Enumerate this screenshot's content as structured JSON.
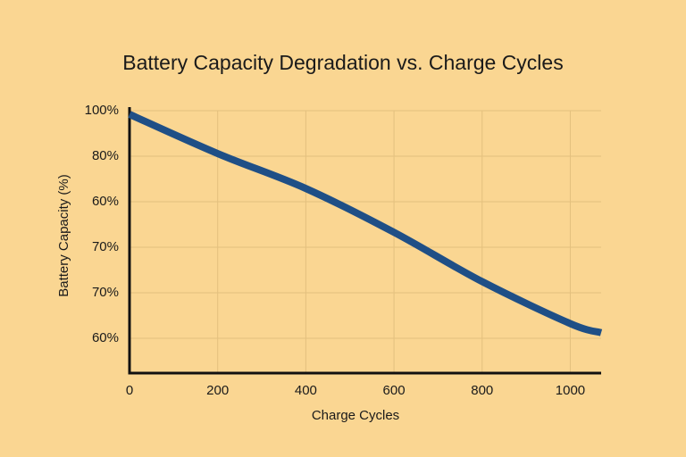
{
  "chart_data": {
    "type": "line",
    "title": "Battery Capacity Degradation vs. Charge Cycles",
    "x_label": "Charge Cycles",
    "y_label": "Battery Capacity (%)",
    "x": [
      0,
      200,
      400,
      600,
      800,
      1000,
      1070
    ],
    "series": [
      {
        "name": "Battery Capacity",
        "color": "#1f4f86",
        "values": [
          98.4,
          81.2,
          65.9,
          46.7,
          25.1,
          6.7,
          2.7
        ]
      }
    ],
    "xlim": [
      0,
      1070
    ],
    "xticks": [
      0,
      200,
      400,
      600,
      800,
      1000
    ],
    "ylim": [
      -15,
      100
    ],
    "y_categories": [
      "100%",
      "80%",
      "60%",
      "70%",
      "70%",
      "60%"
    ],
    "grid": true
  }
}
